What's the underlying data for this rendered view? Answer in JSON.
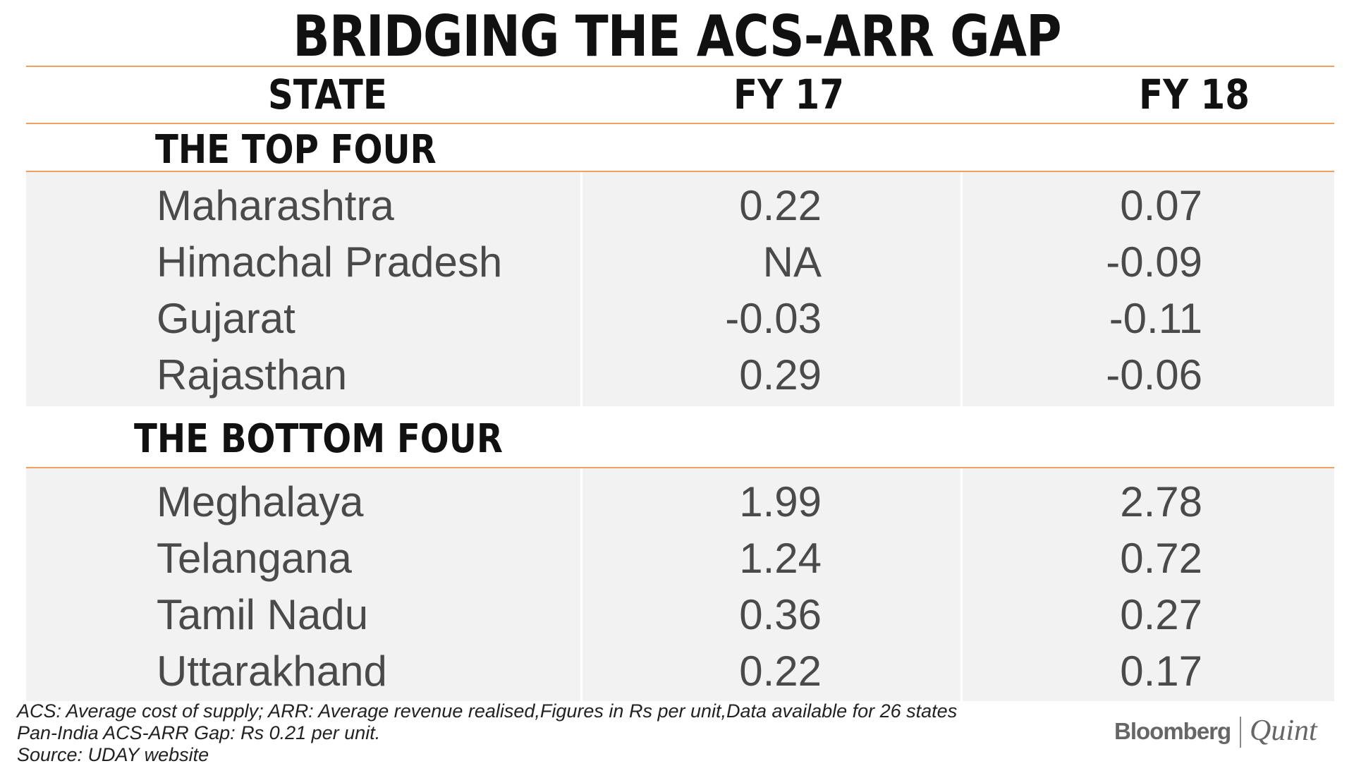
{
  "chart_data": {
    "type": "table",
    "title": "BRIDGING THE ACS-ARR GAP",
    "columns": [
      "STATE",
      "FY 17",
      "FY 18"
    ],
    "groups": [
      {
        "name": "THE TOP FOUR",
        "rows": [
          {
            "state": "Maharashtra",
            "fy17": "0.22",
            "fy18": "0.07"
          },
          {
            "state": "Himachal Pradesh",
            "fy17": "NA",
            "fy18": "-0.09"
          },
          {
            "state": "Gujarat",
            "fy17": "-0.03",
            "fy18": "-0.11"
          },
          {
            "state": "Rajasthan",
            "fy17": "0.29",
            "fy18": "-0.06"
          }
        ]
      },
      {
        "name": "THE BOTTOM FOUR",
        "rows": [
          {
            "state": "Meghalaya",
            "fy17": "1.99",
            "fy18": "2.78"
          },
          {
            "state": "Telangana",
            "fy17": "1.24",
            "fy18": "0.72"
          },
          {
            "state": "Tamil Nadu",
            "fy17": "0.36",
            "fy18": "0.27"
          },
          {
            "state": "Uttarakhand",
            "fy17": "0.22",
            "fy18": "0.17"
          }
        ]
      }
    ]
  },
  "footnotes": [
    "ACS: Average cost of supply; ARR: Average revenue realised,Figures in Rs per unit,Data available for 26 states",
    "Pan-India ACS-ARR Gap: Rs 0.21 per unit.",
    "Source: UDAY website"
  ],
  "logo": {
    "brand": "Bloomberg",
    "sub": "Quint"
  },
  "colors": {
    "accent_rule": "#f0a060",
    "row_shade": "#f2f2f2",
    "title": "#111111",
    "body_text": "#4a4a4a"
  }
}
